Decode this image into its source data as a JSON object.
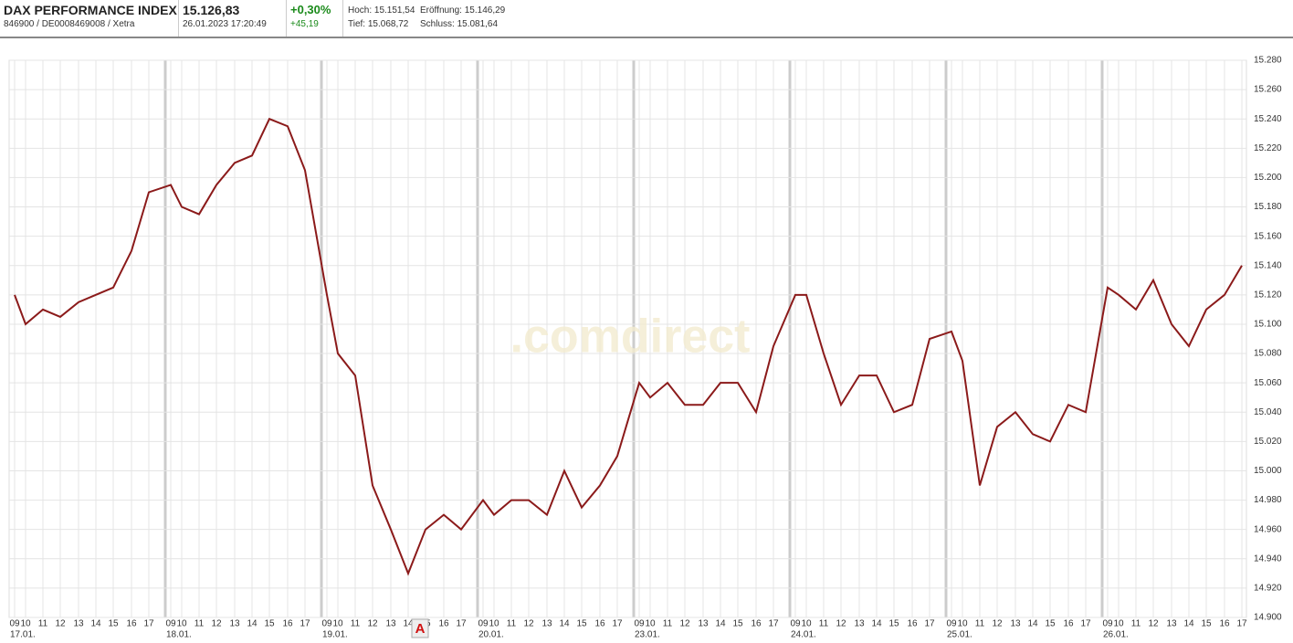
{
  "header": {
    "name": "DAX PERFORMANCE INDEX",
    "ids": "846900 / DE0008469008 / Xetra",
    "price": "15.126,83",
    "timestamp": "26.01.2023 17:20:49",
    "change_pct": "+0,30%",
    "change_abs": "+45,19",
    "high": "Hoch: 15.151,54",
    "open": "Eröffnung: 15.146,29",
    "low": "Tief: 15.068,72",
    "close": "Schluss: 15.081,64"
  },
  "chart_data": {
    "type": "line",
    "watermark": ".comdirect",
    "annotation": "A",
    "day_labels": [
      "17.01.",
      "18.01.",
      "19.01.",
      "20.01.",
      "23.01.",
      "24.01.",
      "25.01.",
      "26.01."
    ],
    "categories": [
      "09",
      "10",
      "11",
      "12",
      "13",
      "14",
      "15",
      "16",
      "17",
      "09",
      "10",
      "11",
      "12",
      "13",
      "14",
      "15",
      "16",
      "17",
      "09",
      "10",
      "11",
      "12",
      "13",
      "14",
      "15",
      "16",
      "17",
      "09",
      "10",
      "11",
      "12",
      "13",
      "14",
      "15",
      "16",
      "17",
      "09",
      "10",
      "11",
      "12",
      "13",
      "14",
      "15",
      "16",
      "17",
      "09",
      "10",
      "11",
      "12",
      "13",
      "14",
      "15",
      "16",
      "17",
      "09",
      "10",
      "11",
      "12",
      "13",
      "14",
      "15",
      "16",
      "17",
      "09",
      "10",
      "11",
      "12",
      "13",
      "14",
      "15",
      "16",
      "17"
    ],
    "series": [
      {
        "name": "DAX",
        "color": "#8b1a1a",
        "values": [
          15120,
          15100,
          15110,
          15105,
          15115,
          15120,
          15125,
          15150,
          15190,
          15195,
          15180,
          15175,
          15195,
          15210,
          15215,
          15240,
          15235,
          15205,
          15120,
          15080,
          15065,
          14990,
          14960,
          14930,
          14960,
          14970,
          14960,
          14980,
          14970,
          14980,
          14980,
          14970,
          15000,
          14975,
          14990,
          15010,
          15060,
          15050,
          15060,
          15045,
          15045,
          15060,
          15060,
          15040,
          15085,
          15120,
          15120,
          15080,
          15045,
          15065,
          15065,
          15040,
          15045,
          15090,
          15095,
          15075,
          14990,
          15030,
          15040,
          15025,
          15020,
          15045,
          15040,
          15125,
          15120,
          15110,
          15130,
          15100,
          15085,
          15110,
          15120,
          15140
        ]
      }
    ],
    "ylim": [
      14900,
      15280
    ],
    "yticks": [
      {
        "value": 14900,
        "label": "14.900"
      },
      {
        "value": 14920,
        "label": "14.920"
      },
      {
        "value": 14940,
        "label": "14.940"
      },
      {
        "value": 14960,
        "label": "14.960"
      },
      {
        "value": 14980,
        "label": "14.980"
      },
      {
        "value": 15000,
        "label": "15.000"
      },
      {
        "value": 15020,
        "label": "15.020"
      },
      {
        "value": 15040,
        "label": "15.040"
      },
      {
        "value": 15060,
        "label": "15.060"
      },
      {
        "value": 15080,
        "label": "15.080"
      },
      {
        "value": 15100,
        "label": "15.100"
      },
      {
        "value": 15120,
        "label": "15.120"
      },
      {
        "value": 15140,
        "label": "15.140"
      },
      {
        "value": 15160,
        "label": "15.160"
      },
      {
        "value": 15180,
        "label": "15.180"
      },
      {
        "value": 15200,
        "label": "15.200"
      },
      {
        "value": 15220,
        "label": "15.220"
      },
      {
        "value": 15240,
        "label": "15.240"
      },
      {
        "value": 15260,
        "label": "15.260"
      },
      {
        "value": 15280,
        "label": "15.280"
      }
    ],
    "grid": true
  }
}
